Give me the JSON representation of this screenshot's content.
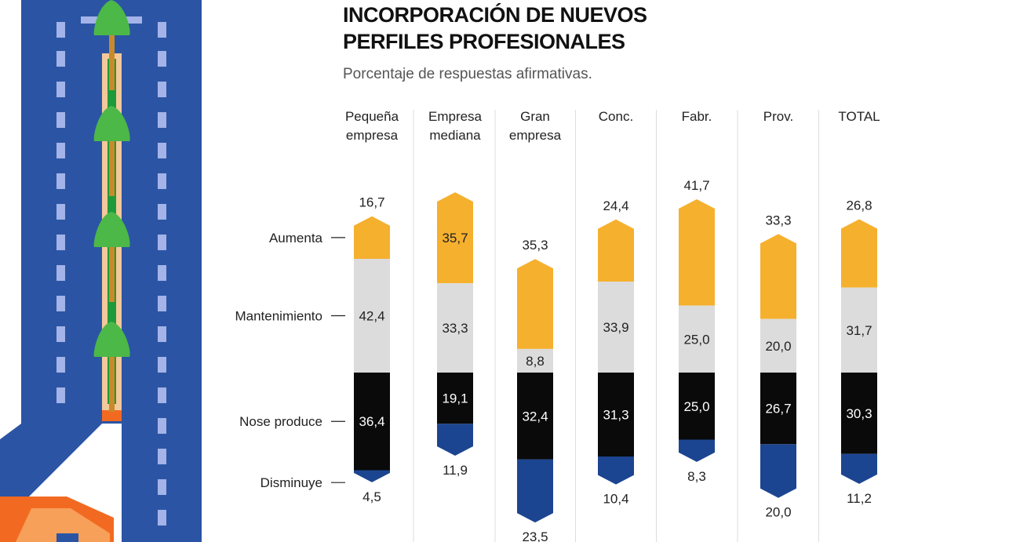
{
  "chart_data": {
    "type": "bar",
    "stacked": true,
    "title": "INCORPORACIÓN DE NUEVOS PERFILES PROFESIONALES",
    "subtitle": "Porcentaje de respuestas afirmativas.",
    "categories": [
      [
        "Pequeña",
        "empresa"
      ],
      [
        "Empresa",
        "mediana"
      ],
      [
        "Gran",
        "empresa"
      ],
      [
        "Conc."
      ],
      [
        "Fabr."
      ],
      [
        "Prov."
      ],
      [
        "TOTAL"
      ]
    ],
    "series": [
      {
        "name": "Aumenta",
        "color": "#f5b02e",
        "values": [
          16.7,
          35.7,
          35.3,
          24.4,
          41.7,
          33.3,
          26.8
        ],
        "labels": [
          "16,7",
          "35,7",
          "35,3",
          "24,4",
          "41,7",
          "33,3",
          "26,8"
        ]
      },
      {
        "name": "Mantenimiento",
        "color": "#dcdcdc",
        "values": [
          42.4,
          33.3,
          8.8,
          33.9,
          25.0,
          20.0,
          31.7
        ],
        "labels": [
          "42,4",
          "33,3",
          "8,8",
          "33,9",
          "25,0",
          "20,0",
          "31,7"
        ]
      },
      {
        "name": "Nose produce",
        "color": "#0a0a0a",
        "values": [
          36.4,
          19.1,
          32.4,
          31.3,
          25.0,
          26.7,
          30.3
        ],
        "labels": [
          "36,4",
          "19,1",
          "32,4",
          "31,3",
          "25,0",
          "26,7",
          "30,3"
        ]
      },
      {
        "name": "Disminuye",
        "color": "#1c4591",
        "values": [
          4.5,
          11.9,
          23.5,
          10.4,
          8.3,
          20.0,
          11.2
        ],
        "labels": [
          "4,5",
          "11,9",
          "23,5",
          "10,4",
          "8,3",
          "20,0",
          "11,2"
        ]
      }
    ],
    "legend": "left"
  }
}
